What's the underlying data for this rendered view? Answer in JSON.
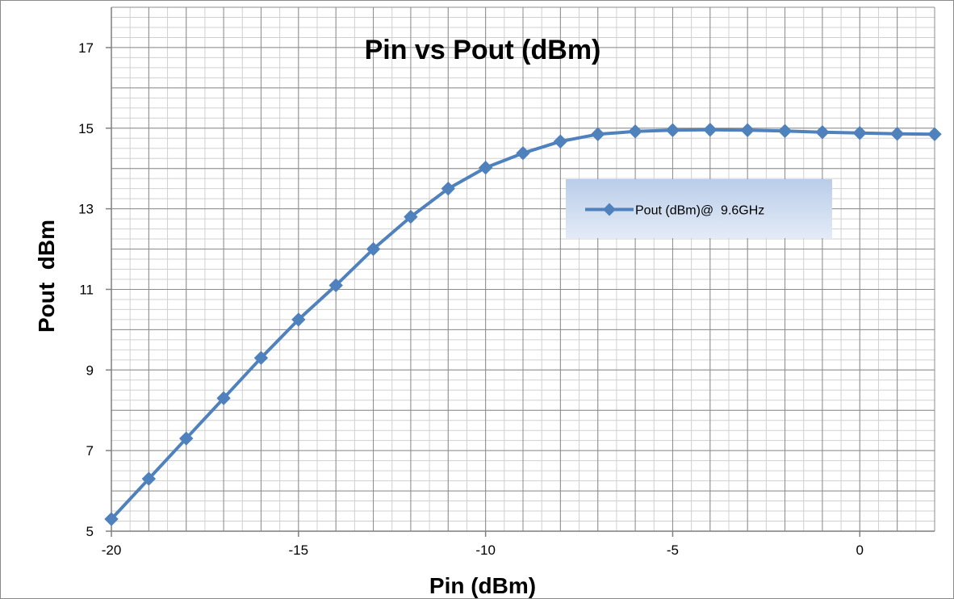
{
  "chart_data": {
    "type": "line",
    "title": "Pin vs Pout (dBm)",
    "xlabel": "Pin (dBm)",
    "ylabel": "Pout  dBm",
    "xlim": [
      -20,
      2
    ],
    "ylim": [
      5,
      18
    ],
    "x_ticks": [
      -20,
      -15,
      -10,
      -5,
      0
    ],
    "y_ticks": [
      5,
      7,
      9,
      11,
      13,
      15,
      17
    ],
    "grid": true,
    "legend_position": "right, below top",
    "series": [
      {
        "name": "Pout (dBm)@  9.6GHz",
        "color": "#4f81bd",
        "marker": "diamond",
        "x": [
          -20,
          -19,
          -18,
          -17,
          -16,
          -15,
          -14,
          -13,
          -12,
          -11,
          -10,
          -9,
          -8,
          -7,
          -6,
          -5,
          -4,
          -3,
          -2,
          -1,
          0,
          1,
          2
        ],
        "y": [
          5.3,
          6.3,
          7.3,
          8.3,
          9.3,
          10.25,
          11.1,
          12.0,
          12.8,
          13.5,
          14.02,
          14.38,
          14.67,
          14.85,
          14.92,
          14.95,
          14.96,
          14.95,
          14.93,
          14.9,
          14.88,
          14.86,
          14.85
        ]
      }
    ]
  }
}
